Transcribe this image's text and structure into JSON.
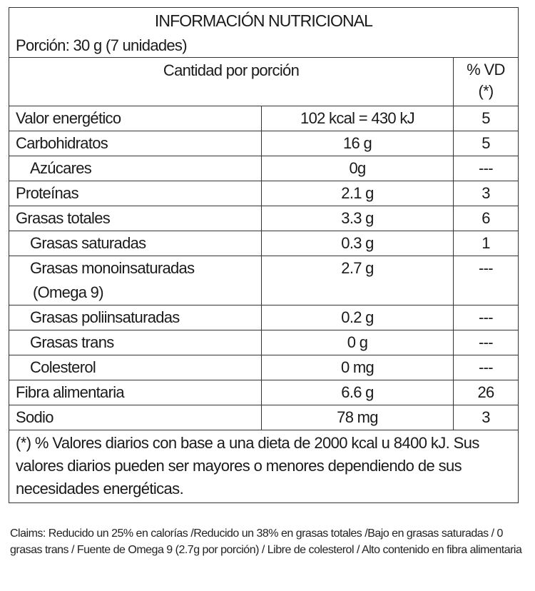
{
  "title": "INFORMACIÓN NUTRICIONAL",
  "portion": "Porción: 30 g (7 unidades)",
  "header": {
    "amount": "Cantidad por porción",
    "dv_line1": "% VD",
    "dv_line2": "(*)"
  },
  "rows": [
    {
      "name": "Valor energético",
      "amount": "102 kcal = 430 kJ",
      "dv": "5",
      "indent": false
    },
    {
      "name": "Carbohidratos",
      "amount": "16 g",
      "dv": "5",
      "indent": false
    },
    {
      "name": "Azúcares",
      "amount": "0g",
      "dv": "---",
      "indent": true
    },
    {
      "name": "Proteínas",
      "amount": "2.1 g",
      "dv": "3",
      "indent": false
    },
    {
      "name": "Grasas totales",
      "amount": "3.3 g",
      "dv": "6",
      "indent": false
    },
    {
      "name": "Grasas saturadas",
      "amount": "0.3 g",
      "dv": "1",
      "indent": true
    },
    {
      "name": "Grasas monoinsaturadas",
      "name2": "(Omega 9)",
      "amount": "2.7 g",
      "dv": "---",
      "indent": true
    },
    {
      "name": "Grasas poliinsaturadas",
      "amount": "0.2 g",
      "dv": "---",
      "indent": true
    },
    {
      "name": "Grasas trans",
      "amount": "0 g",
      "dv": "---",
      "indent": true
    },
    {
      "name": "Colesterol",
      "amount": "0 mg",
      "dv": "---",
      "indent": true
    },
    {
      "name": "Fibra alimentaria",
      "amount": "6.6 g",
      "dv": "26",
      "indent": false
    },
    {
      "name": "Sodio",
      "amount": "78 mg",
      "dv": "3",
      "indent": false
    }
  ],
  "footnote": "(*) % Valores diarios con base a una dieta de 2000 kcal u 8400 kJ. Sus valores diarios pueden ser mayores o menores dependiendo de sus necesidades energéticas.",
  "claims": "Claims: Reducido un 25% en calorías /Reducido un 38% en grasas totales /Bajo en grasas saturadas / 0 grasas trans / Fuente de Omega 9 (2.7g por porción) / Libre de colesterol / Alto contenido en fibra alimentaria"
}
